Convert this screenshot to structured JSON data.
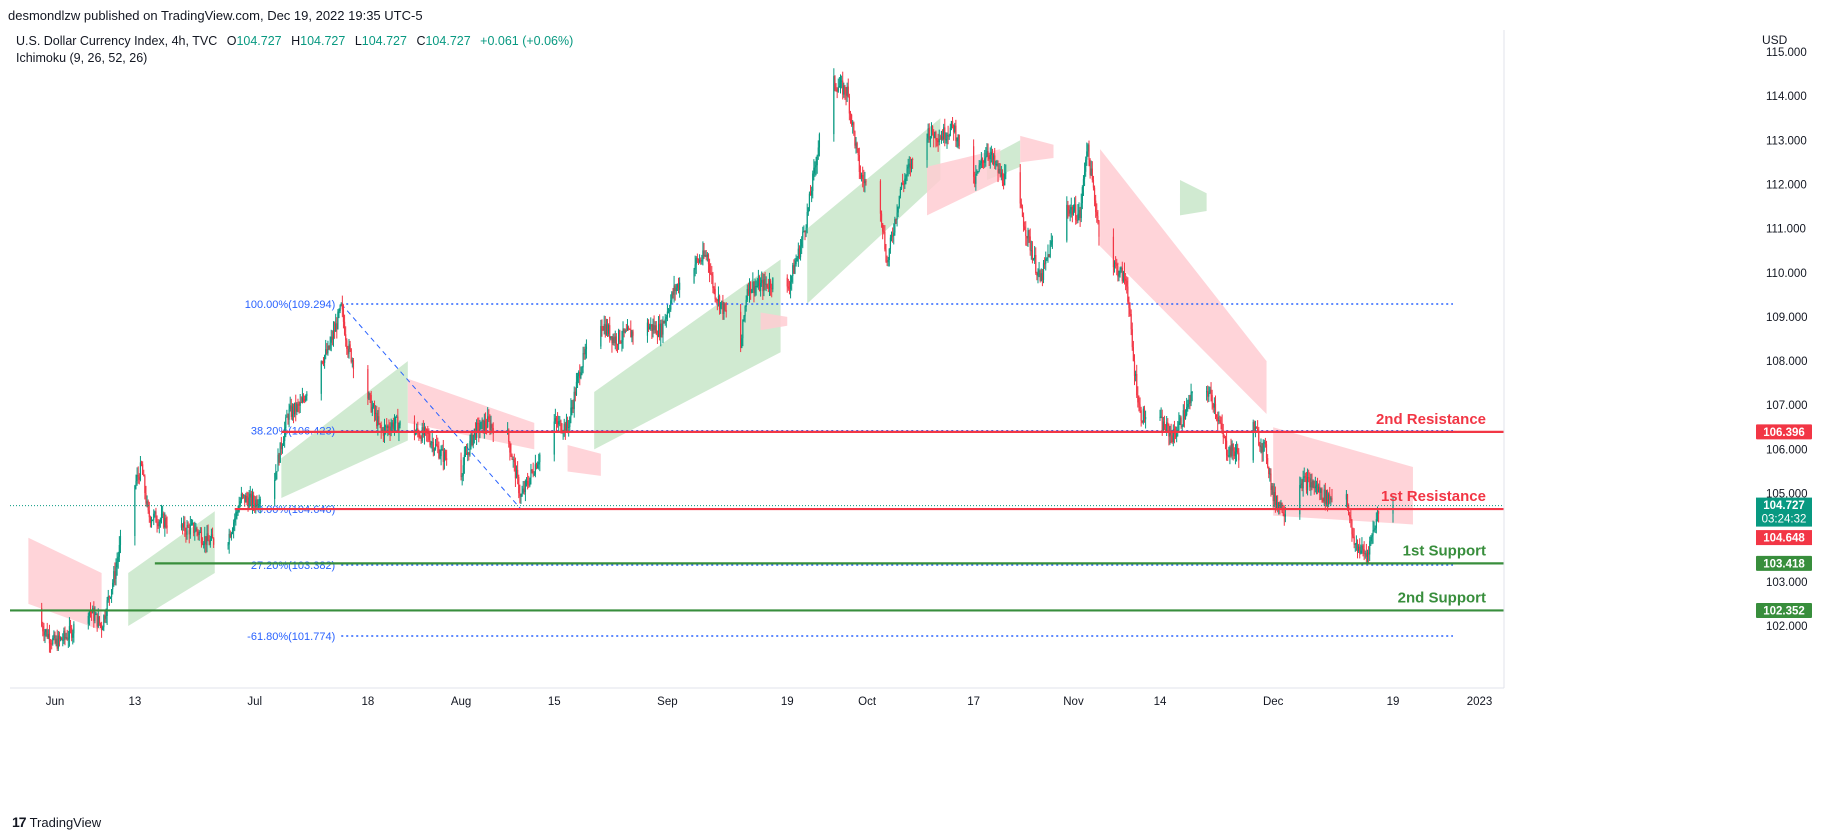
{
  "header": {
    "publisher_text": "desmondlzw published on TradingView.com, Dec 19, 2022 19:35 UTC-5"
  },
  "legend": {
    "symbol": "U.S. Dollar Currency Index, 4h, TVC",
    "o_label": "O",
    "o": "104.727",
    "h_label": "H",
    "h": "104.727",
    "l_label": "L",
    "l": "104.727",
    "c_label": "C",
    "c": "104.727",
    "change": "+0.061 (+0.06%)",
    "indicator": "Ichimoku (9, 26, 52, 26)"
  },
  "currency": "USD",
  "footer": {
    "logo_text": "TradingView"
  },
  "colors": {
    "up": "#089981",
    "down": "#f23645",
    "resistance": "#f23645",
    "support": "#388e3c",
    "fib": "#2962ff",
    "cloud_bull": "#c8e6c9",
    "cloud_bear": "#ffcdd2"
  },
  "chart_data": {
    "type": "candlestick",
    "timeframe": "4h",
    "y_range": [
      101.3,
      115.3
    ],
    "y_ticks": [
      "115.000",
      "114.000",
      "113.000",
      "112.000",
      "111.000",
      "110.000",
      "109.000",
      "108.000",
      "107.000",
      "106.000",
      "105.000",
      "104.000",
      "103.000",
      "102.000"
    ],
    "x_range": [
      "2022-05-28",
      "2023-01-01"
    ],
    "x_ticks": [
      {
        "label": "Jun",
        "date": "2022-06-01"
      },
      {
        "label": "13",
        "date": "2022-06-13"
      },
      {
        "label": "Jul",
        "date": "2022-07-01"
      },
      {
        "label": "18",
        "date": "2022-07-18"
      },
      {
        "label": "Aug",
        "date": "2022-08-01"
      },
      {
        "label": "15",
        "date": "2022-08-15"
      },
      {
        "label": "Sep",
        "date": "2022-09-01"
      },
      {
        "label": "19",
        "date": "2022-09-19"
      },
      {
        "label": "Oct",
        "date": "2022-10-01"
      },
      {
        "label": "17",
        "date": "2022-10-17"
      },
      {
        "label": "Nov",
        "date": "2022-11-01"
      },
      {
        "label": "14",
        "date": "2022-11-14"
      },
      {
        "label": "Dec",
        "date": "2022-12-01"
      },
      {
        "label": "19",
        "date": "2022-12-19"
      },
      {
        "label": "2023",
        "date": "2023-01-01"
      }
    ],
    "price_path": [
      [
        "2022-05-28",
        102.4
      ],
      [
        "2022-06-01",
        101.6
      ],
      [
        "2022-06-03",
        101.8
      ],
      [
        "2022-06-06",
        102.4
      ],
      [
        "2022-06-08",
        102.0
      ],
      [
        "2022-06-10",
        103.2
      ],
      [
        "2022-06-12",
        104.8
      ],
      [
        "2022-06-14",
        105.6
      ],
      [
        "2022-06-15",
        104.5
      ],
      [
        "2022-06-17",
        104.4
      ],
      [
        "2022-06-20",
        104.2
      ],
      [
        "2022-06-22",
        104.2
      ],
      [
        "2022-06-24",
        103.9
      ],
      [
        "2022-06-27",
        104.0
      ],
      [
        "2022-06-29",
        104.9
      ],
      [
        "2022-07-01",
        104.8
      ],
      [
        "2022-07-04",
        105.4
      ],
      [
        "2022-07-06",
        106.8
      ],
      [
        "2022-07-08",
        107.0
      ],
      [
        "2022-07-10",
        107.9
      ],
      [
        "2022-07-12",
        108.2
      ],
      [
        "2022-07-14",
        109.2
      ],
      [
        "2022-07-15",
        108.3
      ],
      [
        "2022-07-18",
        107.2
      ],
      [
        "2022-07-20",
        106.4
      ],
      [
        "2022-07-22",
        106.6
      ],
      [
        "2022-07-25",
        106.4
      ],
      [
        "2022-07-27",
        106.3
      ],
      [
        "2022-07-29",
        105.9
      ],
      [
        "2022-08-01",
        105.5
      ],
      [
        "2022-08-03",
        106.4
      ],
      [
        "2022-08-05",
        106.6
      ],
      [
        "2022-08-08",
        106.3
      ],
      [
        "2022-08-10",
        104.9
      ],
      [
        "2022-08-12",
        105.6
      ],
      [
        "2022-08-15",
        106.6
      ],
      [
        "2022-08-17",
        106.5
      ],
      [
        "2022-08-19",
        107.9
      ],
      [
        "2022-08-22",
        108.9
      ],
      [
        "2022-08-24",
        108.5
      ],
      [
        "2022-08-26",
        108.6
      ],
      [
        "2022-08-29",
        108.8
      ],
      [
        "2022-08-31",
        108.7
      ],
      [
        "2022-09-02",
        109.6
      ],
      [
        "2022-09-05",
        110.2
      ],
      [
        "2022-09-07",
        110.4
      ],
      [
        "2022-09-08",
        109.6
      ],
      [
        "2022-09-10",
        109.0
      ],
      [
        "2022-09-12",
        108.3
      ],
      [
        "2022-09-13",
        109.7
      ],
      [
        "2022-09-15",
        109.7
      ],
      [
        "2022-09-17",
        109.8
      ],
      [
        "2022-09-19",
        109.6
      ],
      [
        "2022-09-21",
        110.6
      ],
      [
        "2022-09-22",
        111.3
      ],
      [
        "2022-09-24",
        113.2
      ],
      [
        "2022-09-26",
        114.3
      ],
      [
        "2022-09-28",
        114.1
      ],
      [
        "2022-09-30",
        112.2
      ],
      [
        "2022-10-03",
        111.5
      ],
      [
        "2022-10-04",
        110.2
      ],
      [
        "2022-10-06",
        111.9
      ],
      [
        "2022-10-08",
        112.6
      ],
      [
        "2022-10-10",
        113.2
      ],
      [
        "2022-10-12",
        113.1
      ],
      [
        "2022-10-14",
        113.3
      ],
      [
        "2022-10-17",
        112.0
      ],
      [
        "2022-10-19",
        112.8
      ],
      [
        "2022-10-21",
        112.2
      ],
      [
        "2022-10-23",
        112.0
      ],
      [
        "2022-10-25",
        110.9
      ],
      [
        "2022-10-27",
        109.8
      ],
      [
        "2022-10-29",
        110.8
      ],
      [
        "2022-10-31",
        111.5
      ],
      [
        "2022-11-02",
        111.3
      ],
      [
        "2022-11-03",
        112.9
      ],
      [
        "2022-11-05",
        110.8
      ],
      [
        "2022-11-07",
        110.2
      ],
      [
        "2022-11-09",
        109.8
      ],
      [
        "2022-11-10",
        108.0
      ],
      [
        "2022-11-11",
        106.8
      ],
      [
        "2022-11-14",
        106.6
      ],
      [
        "2022-11-16",
        106.3
      ],
      [
        "2022-11-18",
        106.9
      ],
      [
        "2022-11-20",
        107.6
      ],
      [
        "2022-11-22",
        107.1
      ],
      [
        "2022-11-24",
        106.0
      ],
      [
        "2022-11-26",
        105.9
      ],
      [
        "2022-11-28",
        106.5
      ],
      [
        "2022-11-30",
        105.9
      ],
      [
        "2022-12-01",
        104.9
      ],
      [
        "2022-12-03",
        104.6
      ],
      [
        "2022-12-05",
        105.3
      ],
      [
        "2022-12-07",
        105.2
      ],
      [
        "2022-12-09",
        104.9
      ],
      [
        "2022-12-12",
        105.0
      ],
      [
        "2022-12-13",
        103.9
      ],
      [
        "2022-12-15",
        103.6
      ],
      [
        "2022-12-17",
        104.7
      ],
      [
        "2022-12-19",
        104.7
      ]
    ],
    "cloud_bull": [
      {
        "from": "2022-06-12",
        "to": "2022-06-25",
        "top": [
          103.2,
          104.6
        ],
        "bottom": [
          102.0,
          103.2
        ]
      },
      {
        "from": "2022-07-05",
        "to": "2022-07-24",
        "top": [
          105.8,
          108.0
        ],
        "bottom": [
          104.9,
          106.2
        ]
      },
      {
        "from": "2022-08-21",
        "to": "2022-09-18",
        "top": [
          107.3,
          110.3
        ],
        "bottom": [
          106.0,
          108.2
        ]
      },
      {
        "from": "2022-09-22",
        "to": "2022-10-12",
        "top": [
          111.0,
          113.5
        ],
        "bottom": [
          109.3,
          112.1
        ]
      },
      {
        "from": "2022-10-19",
        "to": "2022-10-24",
        "top": [
          112.6,
          113.0
        ],
        "bottom": [
          112.1,
          112.4
        ]
      },
      {
        "from": "2022-11-17",
        "to": "2022-11-21",
        "top": [
          112.1,
          111.8
        ],
        "bottom": [
          111.3,
          111.4
        ]
      }
    ],
    "cloud_bear": [
      {
        "from": "2022-05-28",
        "to": "2022-06-08",
        "top": [
          104.0,
          103.2
        ],
        "bottom": [
          102.5,
          101.9
        ]
      },
      {
        "from": "2022-07-24",
        "to": "2022-08-12",
        "top": [
          107.6,
          106.6
        ],
        "bottom": [
          106.6,
          106.0
        ]
      },
      {
        "from": "2022-08-17",
        "to": "2022-08-22",
        "top": [
          106.1,
          105.9
        ],
        "bottom": [
          105.5,
          105.4
        ]
      },
      {
        "from": "2022-09-15",
        "to": "2022-09-19",
        "top": [
          109.1,
          109.0
        ],
        "bottom": [
          108.7,
          108.8
        ]
      },
      {
        "from": "2022-10-10",
        "to": "2022-10-21",
        "top": [
          112.4,
          112.8
        ],
        "bottom": [
          111.3,
          112.1
        ]
      },
      {
        "from": "2022-10-24",
        "to": "2022-10-29",
        "top": [
          113.1,
          112.9
        ],
        "bottom": [
          112.5,
          112.6
        ]
      },
      {
        "from": "2022-11-05",
        "to": "2022-11-30",
        "top": [
          112.8,
          108.0
        ],
        "bottom": [
          110.6,
          106.8
        ]
      },
      {
        "from": "2022-12-01",
        "to": "2022-12-22",
        "top": [
          106.5,
          105.6
        ],
        "bottom": [
          104.5,
          104.3
        ]
      }
    ],
    "fib_lines": [
      {
        "label": "100.00%(109.294)",
        "price": 109.294
      },
      {
        "label": "38.20%(106.423)",
        "price": 106.423
      },
      {
        "label": "0.00%(104.646)",
        "price": 104.646
      },
      {
        "label": "27.20%(103.382)",
        "price": 103.382
      },
      {
        "label": "-61.80%(101.774)",
        "price": 101.774
      }
    ],
    "fib_trend": {
      "from": [
        "2022-07-14",
        109.294
      ],
      "to": [
        "2022-08-10",
        104.646
      ]
    },
    "levels": [
      {
        "name": "2nd Resistance",
        "price": 106.396,
        "label": "106.396",
        "kind": "resistance"
      },
      {
        "name": "1st Resistance",
        "price": 104.648,
        "label": "104.648",
        "kind": "resistance"
      },
      {
        "name": "1st Support",
        "price": 103.418,
        "label": "103.418",
        "kind": "support"
      },
      {
        "name": "2nd Support",
        "price": 102.352,
        "label": "102.352",
        "kind": "support"
      }
    ],
    "last_price": {
      "price": 104.727,
      "label": "104.727",
      "countdown": "03:24:32"
    }
  }
}
